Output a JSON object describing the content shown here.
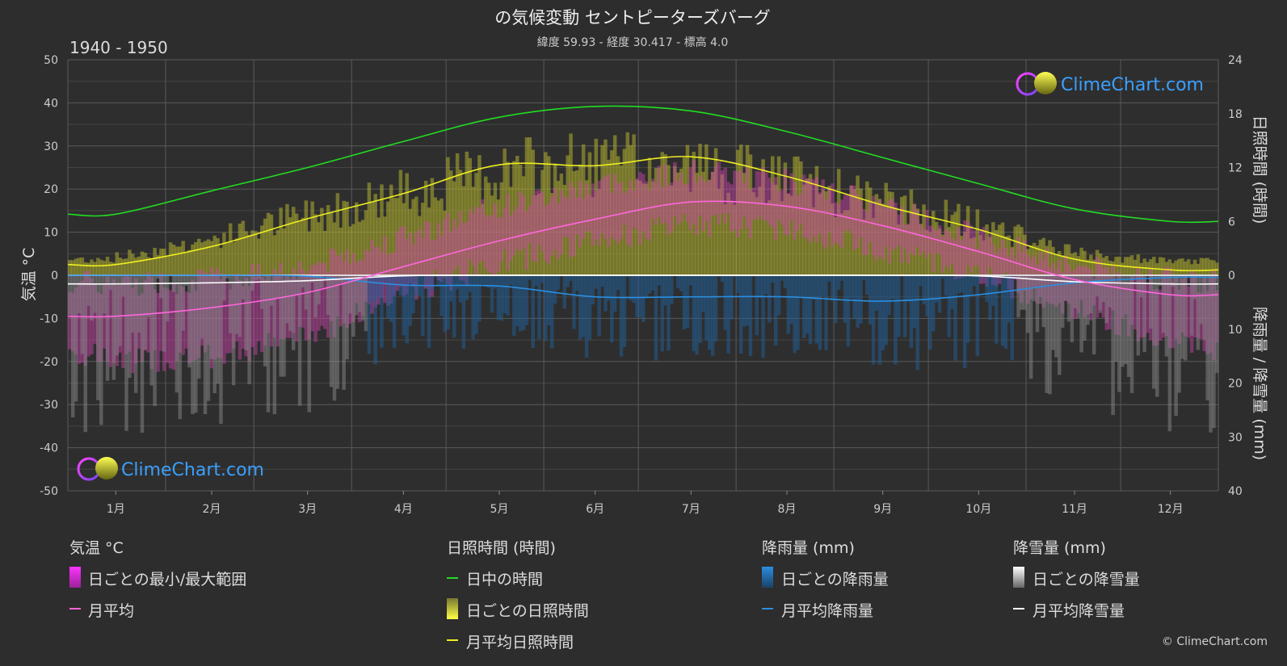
{
  "title": "の気候変動 セントピーターズバーグ",
  "subtitle": "緯度 59.93 - 経度 30.417 - 標高 4.0",
  "period": "1940 - 1950",
  "watermark": "ClimeChart.com",
  "copyright": "© ClimeChart.com",
  "colors": {
    "background": "#2d2d2d",
    "grid": "#555555",
    "daylight": "#22dd22",
    "sunshine_mean": "#eeee22",
    "sunshine_daily": "#b0b030",
    "temp_mean": "#ff66dd",
    "temp_range": "#cc44aa",
    "rain_mean": "#2a8ee0",
    "rain_daily": "#1f5f9a",
    "snow_mean": "#ffffff",
    "snow_daily": "#888888",
    "brand": "#3aa0ff"
  },
  "axes": {
    "left_label": "気温 °C",
    "right_top_label": "日照時間 (時間)",
    "right_bottom_label": "降雨量 / 降雪量 (mm)",
    "left_ticks": [
      "50",
      "40",
      "30",
      "20",
      "10",
      "0",
      "-10",
      "-20",
      "-30",
      "-40",
      "-50"
    ],
    "right_top_ticks": [
      "24",
      "18",
      "12",
      "6",
      "0"
    ],
    "right_bottom_ticks": [
      "10",
      "20",
      "30",
      "40"
    ]
  },
  "legend": {
    "temp": {
      "title": "気温 °C",
      "items": [
        "日ごとの最小/最大範囲",
        "月平均"
      ]
    },
    "sun": {
      "title": "日照時間 (時間)",
      "items": [
        "日中の時間",
        "日ごとの日照時間",
        "月平均日照時間"
      ]
    },
    "rain": {
      "title": "降雨量 (mm)",
      "items": [
        "日ごとの降雨量",
        "月平均降雨量"
      ]
    },
    "snow": {
      "title": "降雪量 (mm)",
      "items": [
        "日ごとの降雪量",
        "月平均降雪量"
      ]
    }
  },
  "chart_data": {
    "type": "line",
    "categories": [
      "1月",
      "2月",
      "3月",
      "4月",
      "5月",
      "6月",
      "7月",
      "8月",
      "9月",
      "10月",
      "11月",
      "12月"
    ],
    "ylim_temp": [
      -50,
      50
    ],
    "ylim_hours": [
      0,
      24
    ],
    "ylim_precip_mm": [
      0,
      40
    ],
    "grid": true,
    "series": [
      {
        "name": "日中の時間",
        "axis": "hours",
        "values": [
          6.8,
          9.4,
          12.0,
          14.9,
          17.6,
          18.8,
          18.3,
          16.0,
          13.1,
          10.2,
          7.4,
          6.0
        ]
      },
      {
        "name": "月平均日照時間",
        "axis": "hours",
        "values": [
          1.2,
          3.2,
          6.3,
          9.1,
          12.3,
          12.2,
          13.2,
          11.0,
          7.8,
          5.1,
          1.8,
          0.6
        ]
      },
      {
        "name": "月平均",
        "axis": "temp",
        "values": [
          -9.5,
          -7.5,
          -4.0,
          2.0,
          8.0,
          13.0,
          17.0,
          16.0,
          11.5,
          5.5,
          -1.0,
          -4.5
        ]
      },
      {
        "name": "月平均降雨量",
        "axis": "precip",
        "values": [
          0.0,
          0.0,
          0.2,
          1.8,
          2.0,
          4.0,
          4.0,
          4.0,
          4.8,
          3.6,
          1.4,
          0.4
        ]
      },
      {
        "name": "月平均降雪量",
        "axis": "precip",
        "values": [
          1.6,
          1.4,
          1.0,
          0.1,
          0.0,
          0.0,
          0.0,
          0.0,
          0.0,
          0.1,
          1.2,
          1.6
        ]
      }
    ],
    "temp_daily_range": {
      "min": [
        -20,
        -19,
        -14,
        -4,
        3,
        8,
        12,
        11,
        6,
        0,
        -8,
        -15
      ],
      "max": [
        -2,
        -1,
        2,
        9,
        16,
        21,
        24,
        22,
        16,
        9,
        2,
        -1
      ]
    },
    "daily_sunshine_envelope": [
      2.5,
      5.0,
      8.5,
      11.5,
      14.5,
      15.5,
      15.0,
      13.0,
      10.0,
      7.0,
      3.0,
      1.8
    ],
    "daily_precip_envelope": [
      30,
      28,
      26,
      16,
      14,
      16,
      16,
      16,
      18,
      18,
      24,
      30
    ]
  }
}
